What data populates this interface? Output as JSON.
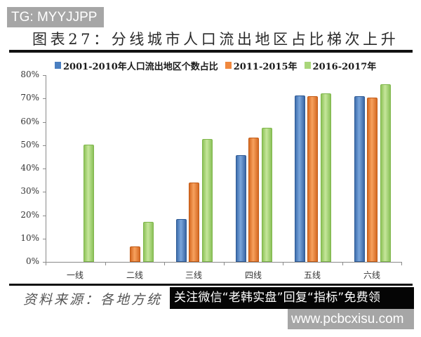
{
  "overlays": {
    "tg_badge": "TG: MYYJJPP",
    "promo_banner": "关注微信“老韩实盘”回复“指标”免费领",
    "url_badge": "www.pcbcxisu.com"
  },
  "figure": {
    "title": "图表27：分线城市人口流出地区占比梯次上升",
    "source": "资料来源：各地方统"
  },
  "chart_data": {
    "type": "bar",
    "title": "图表27：分线城市人口流出地区占比梯次上升",
    "xlabel": "",
    "ylabel": "",
    "categories": [
      "一线",
      "二线",
      "三线",
      "四线",
      "五线",
      "六线"
    ],
    "series": [
      {
        "name": "2001-2010年人口流出地区个数占比",
        "color": "#4a7fc1",
        "values": [
          0,
          0,
          18.4,
          45.7,
          71.3,
          71.0
        ]
      },
      {
        "name": "2011-2015年",
        "color": "#f0883e",
        "values": [
          0,
          6.6,
          33.9,
          53.3,
          71.0,
          70.3
        ]
      },
      {
        "name": "2016-2017年",
        "color": "#a9d67a",
        "values": [
          50.1,
          17.0,
          52.5,
          57.5,
          72.2,
          76.2
        ]
      }
    ],
    "yticks": [
      "0%",
      "10%",
      "20%",
      "30%",
      "40%",
      "50%",
      "60%",
      "70%",
      "80%"
    ],
    "ylim": [
      0,
      80
    ],
    "grid": false,
    "legend_position": "top"
  }
}
